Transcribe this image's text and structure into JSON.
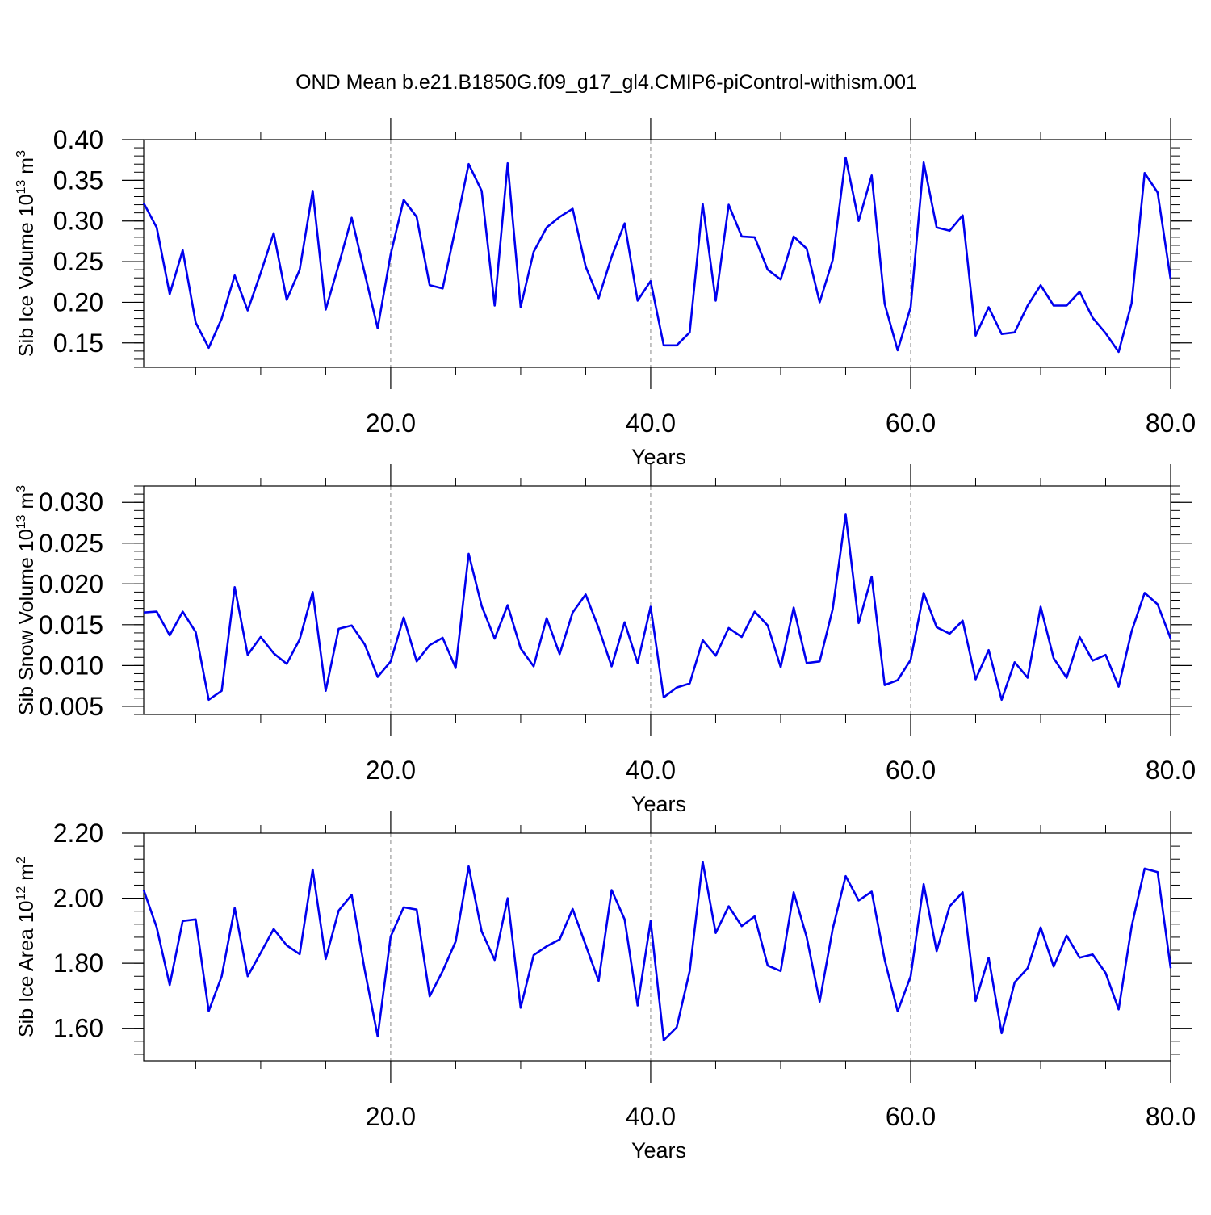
{
  "title": "OND Mean b.e21.B1850G.f09_g17_gl4.CMIP6-piControl-withism.001",
  "colors": {
    "line": "#0000ee",
    "axis": "#000000",
    "grid": "#888888"
  },
  "chart_data": [
    {
      "type": "line",
      "ylabel": "Sib Ice Volume 10",
      "ylabel_sup": "13",
      "ylabel_unit": " m",
      "ylabel_unit_sup": "3",
      "xlabel": "Years",
      "xlim": [
        1,
        80
      ],
      "ylim": [
        0.12,
        0.4
      ],
      "xticks": [
        20,
        40,
        60,
        80
      ],
      "xtick_labels": [
        "20.0",
        "40.0",
        "60.0",
        "80.0"
      ],
      "yticks": [
        0.15,
        0.2,
        0.25,
        0.3,
        0.35,
        0.4
      ],
      "ytick_labels": [
        "0.15",
        "0.20",
        "0.25",
        "0.30",
        "0.35",
        "0.40"
      ],
      "grid": "vertical dashed at major x ticks",
      "x_start": 1,
      "values": [
        0.322,
        0.292,
        0.21,
        0.264,
        0.175,
        0.144,
        0.18,
        0.233,
        0.19,
        0.236,
        0.285,
        0.203,
        0.24,
        0.337,
        0.191,
        0.246,
        0.304,
        0.236,
        0.168,
        0.259,
        0.326,
        0.305,
        0.221,
        0.217,
        0.292,
        0.37,
        0.337,
        0.196,
        0.371,
        0.194,
        0.262,
        0.292,
        0.305,
        0.315,
        0.244,
        0.205,
        0.256,
        0.297,
        0.202,
        0.226,
        0.147,
        0.147,
        0.163,
        0.321,
        0.202,
        0.32,
        0.281,
        0.28,
        0.24,
        0.228,
        0.281,
        0.266,
        0.2,
        0.252,
        0.378,
        0.3,
        0.356,
        0.198,
        0.141,
        0.194,
        0.372,
        0.292,
        0.288,
        0.307,
        0.159,
        0.194,
        0.161,
        0.163,
        0.196,
        0.221,
        0.196,
        0.196,
        0.213,
        0.181,
        0.162,
        0.139,
        0.199,
        0.359,
        0.335,
        0.228
      ]
    },
    {
      "type": "line",
      "ylabel": "Sib Snow Volume 10",
      "ylabel_sup": "13",
      "ylabel_unit": " m",
      "ylabel_unit_sup": "3",
      "xlabel": "Years",
      "xlim": [
        1,
        80
      ],
      "ylim": [
        0.004,
        0.032
      ],
      "xticks": [
        20,
        40,
        60,
        80
      ],
      "xtick_labels": [
        "20.0",
        "40.0",
        "60.0",
        "80.0"
      ],
      "yticks": [
        0.005,
        0.01,
        0.015,
        0.02,
        0.025,
        0.03
      ],
      "ytick_labels": [
        "0.005",
        "0.010",
        "0.015",
        "0.020",
        "0.025",
        "0.030"
      ],
      "grid": "vertical dashed at major x ticks",
      "x_start": 1,
      "values": [
        0.0165,
        0.0166,
        0.0137,
        0.0166,
        0.0141,
        0.0058,
        0.0069,
        0.0196,
        0.0113,
        0.0135,
        0.0115,
        0.0102,
        0.0132,
        0.019,
        0.0069,
        0.0145,
        0.0149,
        0.0126,
        0.0086,
        0.0105,
        0.0159,
        0.0105,
        0.0125,
        0.0134,
        0.0097,
        0.0237,
        0.0173,
        0.0133,
        0.0174,
        0.0121,
        0.0099,
        0.0158,
        0.0114,
        0.0165,
        0.0187,
        0.0146,
        0.0099,
        0.0153,
        0.0103,
        0.0172,
        0.0061,
        0.0073,
        0.0078,
        0.0131,
        0.0112,
        0.0146,
        0.0135,
        0.0166,
        0.0149,
        0.0098,
        0.0171,
        0.0103,
        0.0105,
        0.0169,
        0.0285,
        0.0152,
        0.0209,
        0.0076,
        0.0082,
        0.0107,
        0.0189,
        0.0147,
        0.0139,
        0.0155,
        0.0083,
        0.0119,
        0.0058,
        0.0104,
        0.0085,
        0.0172,
        0.0109,
        0.0085,
        0.0135,
        0.0106,
        0.0113,
        0.0074,
        0.0142,
        0.0189,
        0.0175,
        0.0133
      ]
    },
    {
      "type": "line",
      "ylabel": "Sib Ice Area 10",
      "ylabel_sup": "12",
      "ylabel_unit": " m",
      "ylabel_unit_sup": "2",
      "xlabel": "Years",
      "xlim": [
        1,
        80
      ],
      "ylim": [
        1.5,
        2.2
      ],
      "xticks": [
        20,
        40,
        60,
        80
      ],
      "xtick_labels": [
        "20.0",
        "40.0",
        "60.0",
        "80.0"
      ],
      "yticks": [
        1.6,
        1.8,
        2.0,
        2.2
      ],
      "ytick_labels": [
        "1.60",
        "1.80",
        "2.00",
        "2.20"
      ],
      "grid": "vertical dashed at major x ticks",
      "x_start": 1,
      "values": [
        2.025,
        1.91,
        1.733,
        1.93,
        1.935,
        1.653,
        1.76,
        1.97,
        1.76,
        1.832,
        1.905,
        1.855,
        1.828,
        2.088,
        1.813,
        1.962,
        2.01,
        1.78,
        1.575,
        1.882,
        1.972,
        1.965,
        1.698,
        1.776,
        1.867,
        2.098,
        1.898,
        1.81,
        2.0,
        1.663,
        1.825,
        1.852,
        1.873,
        1.967,
        1.856,
        1.746,
        2.025,
        1.935,
        1.67,
        1.93,
        1.563,
        1.603,
        1.776,
        2.112,
        1.893,
        1.975,
        1.914,
        1.944,
        1.793,
        1.776,
        2.018,
        1.88,
        1.682,
        1.905,
        2.068,
        1.993,
        2.02,
        1.811,
        1.652,
        1.76,
        2.043,
        1.837,
        1.975,
        2.018,
        1.684,
        1.817,
        1.585,
        1.741,
        1.785,
        1.91,
        1.79,
        1.885,
        1.817,
        1.827,
        1.77,
        1.658,
        1.913,
        2.091,
        2.08,
        1.785
      ]
    }
  ]
}
